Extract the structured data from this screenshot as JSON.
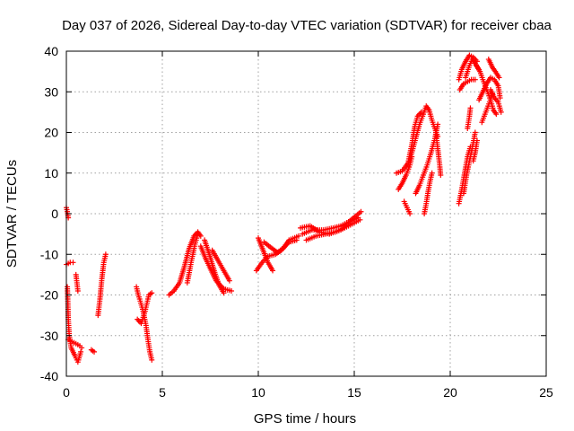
{
  "chart_data": {
    "type": "scatter",
    "title": "Day 037 of 2026, Sidereal Day-to-day VTEC variation (SDTVAR) for receiver cbaa",
    "xlabel": "GPS time / hours",
    "ylabel": "SDTVAR / TECUs",
    "xlim": [
      0,
      25
    ],
    "ylim": [
      -40,
      40
    ],
    "xticks": [
      "0",
      "5",
      "10",
      "15",
      "20",
      "25"
    ],
    "yticks": [
      "-40",
      "-30",
      "-20",
      "-10",
      "0",
      "10",
      "20",
      "30",
      "40"
    ],
    "grid": true,
    "marker": "plus",
    "colors": {
      "series": "#ff0000"
    },
    "series": [
      {
        "segments": [
          [
            [
              0.0,
              1.5
            ],
            [
              0.05,
              0.5
            ],
            [
              0.1,
              -1.0
            ]
          ],
          [
            [
              0.0,
              -12.5
            ],
            [
              0.2,
              -12.0
            ],
            [
              0.35,
              -12.0
            ]
          ],
          [
            [
              0.05,
              -18.0
            ],
            [
              0.08,
              -22.0
            ],
            [
              0.1,
              -26.0
            ],
            [
              0.15,
              -30.0
            ],
            [
              0.25,
              -33.0
            ],
            [
              0.45,
              -35.0
            ],
            [
              0.6,
              -36.5
            ],
            [
              0.75,
              -34.0
            ]
          ],
          [
            [
              0.1,
              -31.0
            ],
            [
              0.3,
              -31.5
            ],
            [
              0.5,
              -32.0
            ],
            [
              0.7,
              -32.5
            ],
            [
              0.8,
              -33.0
            ]
          ],
          [
            [
              0.5,
              -15.0
            ],
            [
              0.55,
              -17.0
            ],
            [
              0.6,
              -19.0
            ]
          ],
          [
            [
              1.3,
              -33.5
            ],
            [
              1.45,
              -34.0
            ]
          ],
          [
            [
              1.65,
              -25.0
            ],
            [
              1.75,
              -21.0
            ],
            [
              1.85,
              -16.0
            ],
            [
              1.95,
              -12.0
            ],
            [
              2.05,
              -10.0
            ]
          ],
          [
            [
              3.65,
              -18.0
            ],
            [
              3.75,
              -20.0
            ],
            [
              3.85,
              -21.5
            ],
            [
              4.0,
              -24.0
            ],
            [
              4.15,
              -27.5
            ],
            [
              4.25,
              -31.0
            ],
            [
              4.35,
              -34.0
            ],
            [
              4.45,
              -36.0
            ]
          ],
          [
            [
              3.7,
              -26.0
            ],
            [
              3.9,
              -27.0
            ],
            [
              4.1,
              -24.0
            ],
            [
              4.3,
              -20.0
            ],
            [
              4.45,
              -19.5
            ]
          ],
          [
            [
              5.35,
              -20.0
            ],
            [
              5.6,
              -19.0
            ],
            [
              5.9,
              -17.0
            ],
            [
              6.15,
              -13.0
            ],
            [
              6.4,
              -8.5
            ],
            [
              6.65,
              -5.5
            ],
            [
              6.85,
              -4.5
            ],
            [
              7.0,
              -5.5
            ]
          ],
          [
            [
              6.3,
              -17.0
            ],
            [
              6.5,
              -12.0
            ],
            [
              6.7,
              -7.5
            ],
            [
              6.85,
              -5.0
            ]
          ],
          [
            [
              7.0,
              -8.0
            ],
            [
              7.25,
              -11.0
            ],
            [
              7.5,
              -13.5
            ],
            [
              7.8,
              -16.5
            ],
            [
              8.2,
              -18.5
            ],
            [
              8.6,
              -19.0
            ]
          ],
          [
            [
              7.2,
              -6.5
            ],
            [
              7.45,
              -10.0
            ],
            [
              7.7,
              -14.0
            ],
            [
              7.95,
              -17.5
            ],
            [
              8.2,
              -19.5
            ]
          ],
          [
            [
              7.6,
              -9.0
            ],
            [
              7.9,
              -11.5
            ],
            [
              8.2,
              -14.0
            ],
            [
              8.5,
              -16.5
            ]
          ],
          [
            [
              9.9,
              -14.0
            ],
            [
              10.2,
              -12.0
            ],
            [
              10.5,
              -10.5
            ],
            [
              10.9,
              -10.0
            ],
            [
              11.2,
              -9.0
            ],
            [
              11.6,
              -7.0
            ],
            [
              12.0,
              -6.5
            ]
          ],
          [
            [
              10.0,
              -6.0
            ],
            [
              10.25,
              -9.0
            ],
            [
              10.5,
              -12.0
            ],
            [
              10.75,
              -14.0
            ]
          ],
          [
            [
              10.3,
              -7.0
            ],
            [
              10.7,
              -8.5
            ],
            [
              11.0,
              -9.5
            ],
            [
              11.3,
              -8.5
            ],
            [
              11.6,
              -6.5
            ],
            [
              12.1,
              -5.5
            ]
          ],
          [
            [
              12.3,
              -5.0
            ],
            [
              12.8,
              -4.0
            ],
            [
              13.4,
              -4.0
            ],
            [
              13.9,
              -3.5
            ],
            [
              14.3,
              -3.0
            ],
            [
              14.7,
              -2.0
            ],
            [
              15.1,
              -0.5
            ],
            [
              15.35,
              0.5
            ]
          ],
          [
            [
              12.5,
              -6.5
            ],
            [
              13.0,
              -5.5
            ],
            [
              13.5,
              -5.0
            ],
            [
              14.0,
              -4.5
            ],
            [
              14.5,
              -3.5
            ],
            [
              14.9,
              -2.5
            ],
            [
              15.3,
              -1.5
            ]
          ],
          [
            [
              12.2,
              -3.5
            ],
            [
              12.7,
              -3.0
            ],
            [
              13.2,
              -4.5
            ],
            [
              13.7,
              -5.0
            ],
            [
              14.3,
              -4.0
            ],
            [
              14.8,
              -2.0
            ],
            [
              15.2,
              -1.0
            ]
          ],
          [
            [
              17.2,
              10.0
            ],
            [
              17.5,
              10.5
            ],
            [
              17.8,
              12.5
            ],
            [
              18.0,
              17.0
            ],
            [
              18.15,
              21.5
            ],
            [
              18.3,
              24.0
            ],
            [
              18.5,
              25.0
            ]
          ],
          [
            [
              17.3,
              6.0
            ],
            [
              17.5,
              7.5
            ],
            [
              17.7,
              9.5
            ],
            [
              17.9,
              12.0
            ],
            [
              18.0,
              14.0
            ]
          ],
          [
            [
              17.6,
              3.0
            ],
            [
              17.75,
              1.5
            ],
            [
              17.9,
              0.0
            ]
          ],
          [
            [
              17.8,
              12.0
            ],
            [
              18.0,
              15.0
            ],
            [
              18.2,
              18.5
            ],
            [
              18.4,
              22.0
            ],
            [
              18.6,
              24.5
            ],
            [
              18.75,
              26.5
            ],
            [
              18.9,
              25.5
            ],
            [
              19.05,
              23.0
            ],
            [
              19.2,
              21.0
            ],
            [
              19.35,
              19.0
            ]
          ],
          [
            [
              18.2,
              5.0
            ],
            [
              18.4,
              7.0
            ],
            [
              18.6,
              9.5
            ],
            [
              18.8,
              12.0
            ],
            [
              19.0,
              15.0
            ],
            [
              19.2,
              18.5
            ],
            [
              19.35,
              22.0
            ]
          ],
          [
            [
              18.65,
              0.0
            ],
            [
              18.75,
              2.5
            ],
            [
              18.85,
              5.5
            ],
            [
              18.95,
              8.0
            ],
            [
              19.05,
              10.0
            ]
          ],
          [
            [
              19.25,
              20.0
            ],
            [
              19.35,
              16.0
            ],
            [
              19.45,
              12.0
            ],
            [
              19.5,
              9.5
            ]
          ],
          [
            [
              20.45,
              2.5
            ],
            [
              20.6,
              6.0
            ],
            [
              20.75,
              10.0
            ],
            [
              20.9,
              14.0
            ],
            [
              21.05,
              16.5
            ]
          ],
          [
            [
              20.7,
              5.0
            ],
            [
              20.85,
              9.5
            ],
            [
              21.05,
              14.0
            ],
            [
              21.2,
              17.5
            ],
            [
              21.3,
              20.0
            ]
          ],
          [
            [
              20.9,
              21.0
            ],
            [
              21.0,
              24.0
            ],
            [
              21.05,
              26.0
            ]
          ],
          [
            [
              21.2,
              13.0
            ],
            [
              21.3,
              15.0
            ],
            [
              21.4,
              18.0
            ]
          ],
          [
            [
              20.45,
              33.0
            ],
            [
              20.6,
              35.5
            ],
            [
              20.8,
              37.5
            ],
            [
              21.0,
              39.0
            ],
            [
              21.2,
              38.5
            ],
            [
              21.4,
              37.5
            ]
          ],
          [
            [
              20.5,
              30.5
            ],
            [
              20.7,
              32.0
            ],
            [
              20.9,
              32.5
            ],
            [
              21.1,
              33.0
            ],
            [
              21.3,
              33.0
            ]
          ],
          [
            [
              20.8,
              33.5
            ],
            [
              21.0,
              36.5
            ],
            [
              21.15,
              38.0
            ],
            [
              21.3,
              37.0
            ],
            [
              21.5,
              35.5
            ]
          ],
          [
            [
              21.35,
              36.5
            ],
            [
              21.55,
              35.0
            ],
            [
              21.7,
              33.0
            ],
            [
              21.9,
              30.5
            ],
            [
              22.1,
              28.0
            ],
            [
              22.25,
              25.5
            ],
            [
              22.4,
              24.5
            ]
          ],
          [
            [
              21.5,
              28.0
            ],
            [
              21.7,
              30.0
            ],
            [
              21.9,
              32.0
            ],
            [
              22.1,
              33.5
            ],
            [
              22.3,
              33.0
            ],
            [
              22.5,
              31.5
            ],
            [
              22.6,
              28.5
            ]
          ],
          [
            [
              21.65,
              22.5
            ],
            [
              21.85,
              25.0
            ],
            [
              22.05,
              27.5
            ],
            [
              22.2,
              29.5
            ]
          ],
          [
            [
              22.0,
              38.0
            ],
            [
              22.2,
              36.0
            ],
            [
              22.35,
              35.0
            ],
            [
              22.55,
              33.5
            ]
          ],
          [
            [
              22.1,
              30.5
            ],
            [
              22.3,
              28.5
            ],
            [
              22.5,
              27.5
            ],
            [
              22.65,
              25.0
            ]
          ]
        ]
      }
    ]
  }
}
